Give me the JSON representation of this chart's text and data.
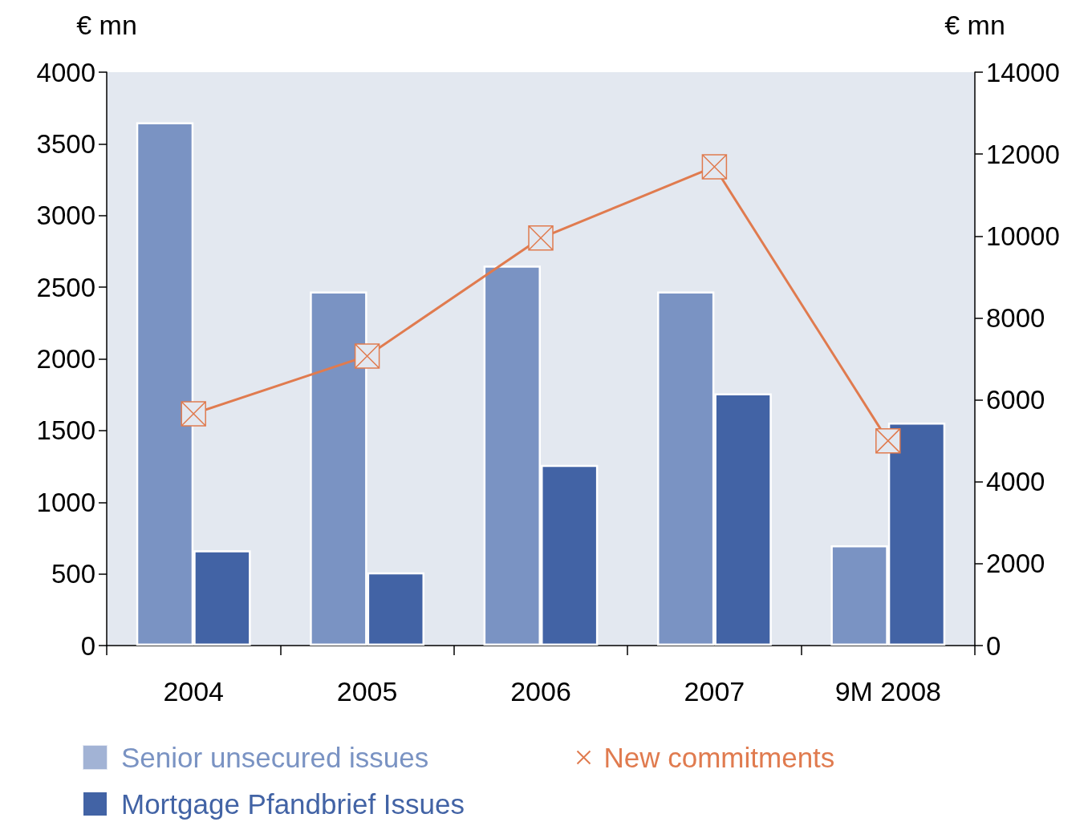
{
  "chart_data": {
    "type": "bar",
    "categories": [
      "2004",
      "2005",
      "2006",
      "2007",
      "9M 2008"
    ],
    "ylabel": "€ mn",
    "y2label": "€ mn",
    "ylim": [
      0,
      4000
    ],
    "yticks": [
      0,
      500,
      1000,
      1500,
      2000,
      2500,
      3000,
      3500,
      4000
    ],
    "y2lim": [
      0,
      14000
    ],
    "y2ticks": [
      0,
      2000,
      4000,
      6000,
      8000,
      10000,
      12000,
      14000
    ],
    "grid": false,
    "legend": "bottom",
    "marker": "cross",
    "line_style": "solid",
    "series": [
      {
        "name": "Senior unsecured issues",
        "color": "#7a93c3",
        "values": [
          3650,
          2470,
          2650,
          2470,
          700
        ]
      },
      {
        "name": "Mortgage Pfandbrief Issues",
        "color": "#4263a5",
        "values": [
          665,
          510,
          1260,
          1760,
          1555
        ]
      },
      {
        "name": "New commitments",
        "type": "line",
        "axis": "y2",
        "color": "#e07b4f",
        "values": [
          5660,
          7070,
          9950,
          11690,
          5000
        ]
      }
    ]
  }
}
